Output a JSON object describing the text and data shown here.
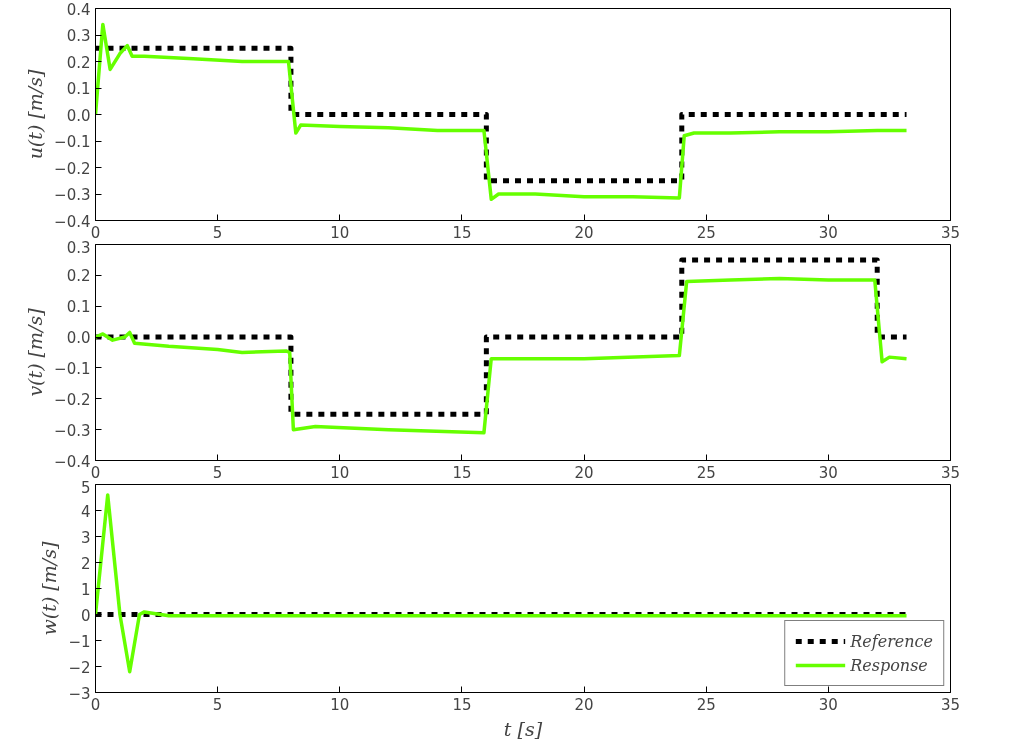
{
  "chart_data": [
    {
      "type": "line",
      "ylabel": "u(t) [m/s]",
      "xlim": [
        0,
        35
      ],
      "xticks": [
        0,
        5,
        10,
        15,
        20,
        25,
        30,
        35
      ],
      "ylim": [
        -0.4,
        0.4
      ],
      "yticks": [
        {
          "value": -0.4,
          "label": "−0.4"
        },
        {
          "value": -0.3,
          "label": "−0.3"
        },
        {
          "value": -0.2,
          "label": "−0.2"
        },
        {
          "value": -0.1,
          "label": "−0.1"
        },
        {
          "value": 0,
          "label": "0.0"
        },
        {
          "value": 0.1,
          "label": "0.1"
        },
        {
          "value": 0.2,
          "label": "0.2"
        },
        {
          "value": 0.3,
          "label": "0.3"
        },
        {
          "value": 0.4,
          "label": "0.4"
        }
      ],
      "grid": false,
      "series": [
        {
          "color": "#000000",
          "line_style": "dashed",
          "x": [
            0,
            8,
            8,
            16,
            16,
            24,
            24,
            33.2
          ],
          "values": [
            0.25,
            0.25,
            0,
            0,
            -0.25,
            -0.25,
            0,
            0
          ]
        },
        {
          "color": "#66ff00",
          "line_style": "solid",
          "x": [
            0,
            0.3,
            0.6,
            1.0,
            1.3,
            1.5,
            2,
            4,
            6,
            7.9,
            8.2,
            8.4,
            10,
            12,
            14,
            15.9,
            16.2,
            16.5,
            18,
            20,
            22,
            23.9,
            24.1,
            24.5,
            26,
            28,
            30,
            32,
            33.2
          ],
          "values": [
            0,
            0.34,
            0.17,
            0.23,
            0.26,
            0.22,
            0.22,
            0.21,
            0.2,
            0.2,
            -0.07,
            -0.04,
            -0.045,
            -0.05,
            -0.06,
            -0.06,
            -0.32,
            -0.3,
            -0.3,
            -0.31,
            -0.31,
            -0.315,
            -0.08,
            -0.07,
            -0.07,
            -0.065,
            -0.065,
            -0.06,
            -0.06
          ]
        }
      ]
    },
    {
      "type": "line",
      "ylabel": "v(t) [m/s]",
      "xlim": [
        0,
        35
      ],
      "xticks": [
        0,
        5,
        10,
        15,
        20,
        25,
        30,
        35
      ],
      "ylim": [
        -0.4,
        0.3
      ],
      "yticks": [
        {
          "value": -0.4,
          "label": "−0.4"
        },
        {
          "value": -0.3,
          "label": "−0.3"
        },
        {
          "value": -0.2,
          "label": "−0.2"
        },
        {
          "value": -0.1,
          "label": "−0.1"
        },
        {
          "value": 0,
          "label": "0.0"
        },
        {
          "value": 0.1,
          "label": "0.1"
        },
        {
          "value": 0.2,
          "label": "0.2"
        },
        {
          "value": 0.3,
          "label": "0.3"
        }
      ],
      "grid": false,
      "series": [
        {
          "color": "#000000",
          "line_style": "dashed",
          "x": [
            0,
            8,
            8,
            16,
            16,
            24,
            24,
            32,
            32,
            33.2
          ],
          "values": [
            0,
            0,
            -0.25,
            -0.25,
            0,
            0,
            0.25,
            0.25,
            0,
            0
          ]
        },
        {
          "color": "#66ff00",
          "line_style": "solid",
          "x": [
            0,
            0.3,
            0.7,
            1.2,
            1.4,
            1.6,
            3,
            5,
            6,
            7.8,
            7.95,
            8.1,
            9,
            12,
            15.9,
            16.2,
            17,
            20,
            23.9,
            24.2,
            26,
            28,
            30,
            31.9,
            32.2,
            32.5,
            33.2
          ],
          "values": [
            0,
            0.01,
            -0.01,
            0,
            0.015,
            -0.02,
            -0.03,
            -0.04,
            -0.05,
            -0.045,
            -0.05,
            -0.3,
            -0.29,
            -0.3,
            -0.31,
            -0.07,
            -0.07,
            -0.07,
            -0.06,
            0.18,
            0.185,
            0.19,
            0.185,
            0.185,
            -0.08,
            -0.065,
            -0.07
          ]
        }
      ]
    },
    {
      "type": "line",
      "xlabel": "t [s]",
      "ylabel": "w(t) [m/s]",
      "xlim": [
        0,
        35
      ],
      "xticks": [
        0,
        5,
        10,
        15,
        20,
        25,
        30,
        35
      ],
      "ylim": [
        -3,
        5
      ],
      "yticks": [
        -3,
        -2,
        -1,
        0,
        1,
        2,
        3,
        4,
        5
      ],
      "grid": false,
      "legend": "bottom right",
      "series": [
        {
          "name": "Reference",
          "color": "#000000",
          "line_style": "dashed",
          "x": [
            0,
            33.2
          ],
          "values": [
            0,
            0
          ]
        },
        {
          "name": "Response",
          "color": "#66ff00",
          "line_style": "solid",
          "x": [
            0,
            0.5,
            1.0,
            1.4,
            1.8,
            2.0,
            3,
            10,
            20,
            33.2
          ],
          "values": [
            0,
            4.6,
            0,
            -2.2,
            0,
            0.1,
            -0.05,
            -0.05,
            -0.05,
            -0.05
          ]
        }
      ]
    }
  ]
}
